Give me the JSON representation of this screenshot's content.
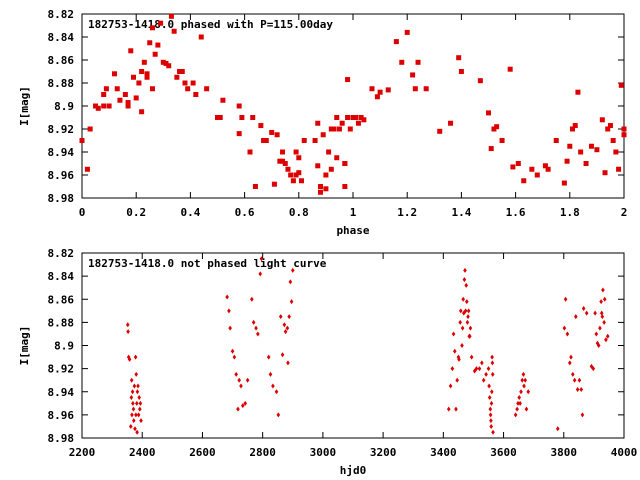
{
  "chart_data": [
    {
      "type": "scatter",
      "title": "182753-1418.0 phased with P=115.00day",
      "xlabel": "phase",
      "ylabel": "I[mag]",
      "xlim": [
        0,
        2
      ],
      "ylim": [
        8.82,
        8.98
      ],
      "y_inverted": true,
      "x_ticks": [
        "0",
        "0.2",
        "0.4",
        "0.6",
        "0.8",
        "1",
        "1.2",
        "1.4",
        "1.6",
        "1.8",
        "2"
      ],
      "y_ticks": [
        "8.82",
        "8.84",
        "8.86",
        "8.88",
        "8.9",
        "8.92",
        "8.94",
        "8.96",
        "8.98"
      ],
      "grid": false,
      "marker_color": "#dd0000",
      "marker": "plus-box",
      "points": [
        [
          0.0,
          8.93
        ],
        [
          0.02,
          8.955
        ],
        [
          0.03,
          8.92
        ],
        [
          0.05,
          8.9
        ],
        [
          0.06,
          8.902
        ],
        [
          0.08,
          8.89
        ],
        [
          0.08,
          8.9
        ],
        [
          0.09,
          8.885
        ],
        [
          0.1,
          8.9
        ],
        [
          0.12,
          8.872
        ],
        [
          0.13,
          8.885
        ],
        [
          0.14,
          8.895
        ],
        [
          0.16,
          8.89
        ],
        [
          0.17,
          8.9
        ],
        [
          0.17,
          8.897
        ],
        [
          0.18,
          8.852
        ],
        [
          0.19,
          8.875
        ],
        [
          0.2,
          8.893
        ],
        [
          0.21,
          8.88
        ],
        [
          0.22,
          8.87
        ],
        [
          0.22,
          8.905
        ],
        [
          0.23,
          8.862
        ],
        [
          0.24,
          8.872
        ],
        [
          0.24,
          8.875
        ],
        [
          0.25,
          8.845
        ],
        [
          0.26,
          8.885
        ],
        [
          0.26,
          8.832
        ],
        [
          0.27,
          8.855
        ],
        [
          0.28,
          8.847
        ],
        [
          0.29,
          8.828
        ],
        [
          0.3,
          8.862
        ],
        [
          0.31,
          8.863
        ],
        [
          0.32,
          8.865
        ],
        [
          0.33,
          8.822
        ],
        [
          0.34,
          8.835
        ],
        [
          0.35,
          8.875
        ],
        [
          0.36,
          8.87
        ],
        [
          0.37,
          8.87
        ],
        [
          0.38,
          8.88
        ],
        [
          0.39,
          8.885
        ],
        [
          0.41,
          8.88
        ],
        [
          0.42,
          8.89
        ],
        [
          0.44,
          8.84
        ],
        [
          0.46,
          8.885
        ],
        [
          0.5,
          8.91
        ],
        [
          0.51,
          8.91
        ],
        [
          0.52,
          8.895
        ],
        [
          0.58,
          8.9
        ],
        [
          0.58,
          8.924
        ],
        [
          0.59,
          8.91
        ],
        [
          0.62,
          8.94
        ],
        [
          0.63,
          8.91
        ],
        [
          0.64,
          8.97
        ],
        [
          0.66,
          8.917
        ],
        [
          0.67,
          8.93
        ],
        [
          0.68,
          8.93
        ],
        [
          0.7,
          8.923
        ],
        [
          0.71,
          8.968
        ],
        [
          0.72,
          8.925
        ],
        [
          0.73,
          8.948
        ],
        [
          0.74,
          8.948
        ],
        [
          0.74,
          8.94
        ],
        [
          0.75,
          8.95
        ],
        [
          0.76,
          8.955
        ],
        [
          0.77,
          8.96
        ],
        [
          0.78,
          8.965
        ],
        [
          0.79,
          8.96
        ],
        [
          0.79,
          8.94
        ],
        [
          0.8,
          8.958
        ],
        [
          0.8,
          8.945
        ],
        [
          0.81,
          8.965
        ],
        [
          0.82,
          8.93
        ],
        [
          0.86,
          8.93
        ],
        [
          0.87,
          8.915
        ],
        [
          0.87,
          8.952
        ],
        [
          0.88,
          8.97
        ],
        [
          0.88,
          8.975
        ],
        [
          0.89,
          8.925
        ],
        [
          0.9,
          8.96
        ],
        [
          0.9,
          8.972
        ],
        [
          0.91,
          8.94
        ],
        [
          0.92,
          8.92
        ],
        [
          0.92,
          8.955
        ],
        [
          0.93,
          8.92
        ],
        [
          0.94,
          8.945
        ],
        [
          0.94,
          8.91
        ],
        [
          0.95,
          8.92
        ],
        [
          0.96,
          8.915
        ],
        [
          0.97,
          8.95
        ],
        [
          0.97,
          8.97
        ],
        [
          0.97,
          8.95
        ],
        [
          0.98,
          8.91
        ],
        [
          0.98,
          8.877
        ],
        [
          0.99,
          8.92
        ],
        [
          1.0,
          8.91
        ],
        [
          1.01,
          8.91
        ],
        [
          1.02,
          8.915
        ],
        [
          1.03,
          8.91
        ],
        [
          1.04,
          8.912
        ],
        [
          1.07,
          8.885
        ],
        [
          1.09,
          8.892
        ],
        [
          1.1,
          8.888
        ],
        [
          1.13,
          8.886
        ],
        [
          1.16,
          8.844
        ],
        [
          1.18,
          8.862
        ],
        [
          1.2,
          8.836
        ],
        [
          1.22,
          8.873
        ],
        [
          1.23,
          8.885
        ],
        [
          1.24,
          8.862
        ],
        [
          1.27,
          8.885
        ],
        [
          1.32,
          8.922
        ],
        [
          1.36,
          8.915
        ],
        [
          1.39,
          8.858
        ],
        [
          1.4,
          8.87
        ],
        [
          1.47,
          8.878
        ],
        [
          1.5,
          8.906
        ],
        [
          1.51,
          8.937
        ],
        [
          1.52,
          8.92
        ],
        [
          1.53,
          8.918
        ],
        [
          1.55,
          8.93
        ],
        [
          1.58,
          8.868
        ],
        [
          1.59,
          8.953
        ],
        [
          1.61,
          8.95
        ],
        [
          1.63,
          8.965
        ],
        [
          1.66,
          8.955
        ],
        [
          1.68,
          8.96
        ],
        [
          1.71,
          8.952
        ],
        [
          1.72,
          8.955
        ],
        [
          1.75,
          8.93
        ],
        [
          1.78,
          8.967
        ],
        [
          1.79,
          8.948
        ],
        [
          1.8,
          8.935
        ],
        [
          1.81,
          8.92
        ],
        [
          1.82,
          8.917
        ],
        [
          1.83,
          8.888
        ],
        [
          1.84,
          8.94
        ],
        [
          1.86,
          8.95
        ],
        [
          1.88,
          8.935
        ],
        [
          1.9,
          8.938
        ],
        [
          1.92,
          8.912
        ],
        [
          1.93,
          8.958
        ],
        [
          1.94,
          8.92
        ],
        [
          1.95,
          8.917
        ],
        [
          1.96,
          8.93
        ],
        [
          1.97,
          8.94
        ],
        [
          1.98,
          8.955
        ],
        [
          1.99,
          8.882
        ],
        [
          2.0,
          8.92
        ],
        [
          2.0,
          8.925
        ]
      ]
    },
    {
      "type": "scatter",
      "title": "182753-1418.0 not phased light curve",
      "xlabel": "hjd0",
      "ylabel": "I[mag]",
      "xlim": [
        2200,
        4000
      ],
      "ylim": [
        8.82,
        8.98
      ],
      "y_inverted": true,
      "x_ticks": [
        "2200",
        "2400",
        "2600",
        "2800",
        "3000",
        "3200",
        "3400",
        "3600",
        "3800",
        "4000"
      ],
      "y_ticks": [
        "8.82",
        "8.84",
        "8.86",
        "8.88",
        "8.9",
        "8.92",
        "8.94",
        "8.96",
        "8.98"
      ],
      "grid": false,
      "marker_color": "#dd0000",
      "marker": "small-diamond",
      "points": [
        [
          2352,
          8.882
        ],
        [
          2353,
          8.888
        ],
        [
          2355,
          8.91
        ],
        [
          2358,
          8.912
        ],
        [
          2362,
          8.97
        ],
        [
          2364,
          8.945
        ],
        [
          2365,
          8.93
        ],
        [
          2366,
          8.96
        ],
        [
          2368,
          8.94
        ],
        [
          2369,
          8.95
        ],
        [
          2371,
          8.955
        ],
        [
          2372,
          8.965
        ],
        [
          2374,
          8.935
        ],
        [
          2376,
          8.972
        ],
        [
          2378,
          8.91
        ],
        [
          2379,
          8.96
        ],
        [
          2380,
          8.925
        ],
        [
          2382,
          8.95
        ],
        [
          2383,
          8.975
        ],
        [
          2384,
          8.94
        ],
        [
          2386,
          8.935
        ],
        [
          2388,
          8.96
        ],
        [
          2390,
          8.945
        ],
        [
          2392,
          8.955
        ],
        [
          2394,
          8.95
        ],
        [
          2396,
          8.965
        ],
        [
          2682,
          8.858
        ],
        [
          2688,
          8.87
        ],
        [
          2692,
          8.885
        ],
        [
          2700,
          8.905
        ],
        [
          2706,
          8.91
        ],
        [
          2712,
          8.925
        ],
        [
          2718,
          8.955
        ],
        [
          2722,
          8.93
        ],
        [
          2728,
          8.935
        ],
        [
          2734,
          8.952
        ],
        [
          2742,
          8.95
        ],
        [
          2750,
          8.93
        ],
        [
          2764,
          8.86
        ],
        [
          2770,
          8.88
        ],
        [
          2778,
          8.885
        ],
        [
          2784,
          8.89
        ],
        [
          2792,
          8.838
        ],
        [
          2796,
          8.825
        ],
        [
          2820,
          8.91
        ],
        [
          2826,
          8.925
        ],
        [
          2834,
          8.935
        ],
        [
          2846,
          8.94
        ],
        [
          2852,
          8.96
        ],
        [
          2860,
          8.875
        ],
        [
          2866,
          8.908
        ],
        [
          2872,
          8.882
        ],
        [
          2876,
          8.888
        ],
        [
          2882,
          8.885
        ],
        [
          2884,
          8.915
        ],
        [
          2888,
          8.875
        ],
        [
          2892,
          8.845
        ],
        [
          2896,
          8.862
        ],
        [
          2900,
          8.835
        ],
        [
          3418,
          8.955
        ],
        [
          3424,
          8.935
        ],
        [
          3430,
          8.92
        ],
        [
          3434,
          8.89
        ],
        [
          3438,
          8.905
        ],
        [
          3442,
          8.955
        ],
        [
          3446,
          8.93
        ],
        [
          3450,
          8.91
        ],
        [
          3452,
          8.912
        ],
        [
          3456,
          8.88
        ],
        [
          3458,
          8.87
        ],
        [
          3462,
          8.9
        ],
        [
          3464,
          8.885
        ],
        [
          3466,
          8.86
        ],
        [
          3468,
          8.872
        ],
        [
          3470,
          8.843
        ],
        [
          3472,
          8.835
        ],
        [
          3474,
          8.87
        ],
        [
          3476,
          8.848
        ],
        [
          3478,
          8.862
        ],
        [
          3480,
          8.88
        ],
        [
          3482,
          8.875
        ],
        [
          3484,
          8.87
        ],
        [
          3486,
          8.892
        ],
        [
          3488,
          8.892
        ],
        [
          3490,
          8.885
        ],
        [
          3494,
          8.91
        ],
        [
          3504,
          8.922
        ],
        [
          3510,
          8.92
        ],
        [
          3520,
          8.92
        ],
        [
          3528,
          8.915
        ],
        [
          3534,
          8.93
        ],
        [
          3542,
          8.925
        ],
        [
          3550,
          8.92
        ],
        [
          3552,
          8.935
        ],
        [
          3554,
          8.945
        ],
        [
          3556,
          8.955
        ],
        [
          3557,
          8.96
        ],
        [
          3558,
          8.965
        ],
        [
          3559,
          8.97
        ],
        [
          3560,
          8.95
        ],
        [
          3561,
          8.94
        ],
        [
          3562,
          8.91
        ],
        [
          3563,
          8.915
        ],
        [
          3564,
          8.925
        ],
        [
          3565,
          8.975
        ],
        [
          3640,
          8.96
        ],
        [
          3645,
          8.955
        ],
        [
          3648,
          8.95
        ],
        [
          3652,
          8.945
        ],
        [
          3655,
          8.95
        ],
        [
          3658,
          8.94
        ],
        [
          3662,
          8.93
        ],
        [
          3666,
          8.925
        ],
        [
          3668,
          8.935
        ],
        [
          3672,
          8.93
        ],
        [
          3676,
          8.955
        ],
        [
          3682,
          8.94
        ],
        [
          3780,
          8.972
        ],
        [
          3802,
          8.885
        ],
        [
          3806,
          8.86
        ],
        [
          3812,
          8.89
        ],
        [
          3820,
          8.915
        ],
        [
          3824,
          8.91
        ],
        [
          3830,
          8.925
        ],
        [
          3836,
          8.93
        ],
        [
          3840,
          8.875
        ],
        [
          3846,
          8.938
        ],
        [
          3852,
          8.93
        ],
        [
          3858,
          8.938
        ],
        [
          3862,
          8.96
        ],
        [
          3866,
          8.868
        ],
        [
          3876,
          8.872
        ],
        [
          3892,
          8.918
        ],
        [
          3898,
          8.92
        ],
        [
          3904,
          8.872
        ],
        [
          3908,
          8.89
        ],
        [
          3912,
          8.898
        ],
        [
          3916,
          8.9
        ],
        [
          3920,
          8.885
        ],
        [
          3924,
          8.862
        ],
        [
          3926,
          8.872
        ],
        [
          3928,
          8.875
        ],
        [
          3930,
          8.852
        ],
        [
          3934,
          8.88
        ],
        [
          3936,
          8.86
        ],
        [
          3940,
          8.895
        ],
        [
          3946,
          8.892
        ]
      ]
    }
  ]
}
